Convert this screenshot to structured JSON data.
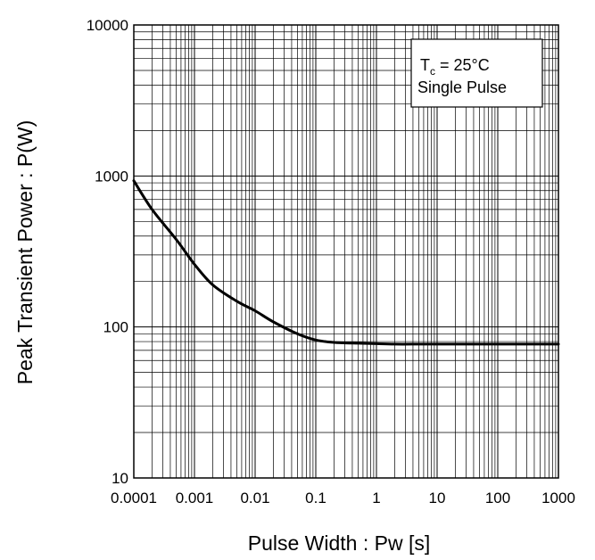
{
  "chart_data": {
    "type": "line",
    "title": "",
    "xlabel": "Pulse Width : Pw [s]",
    "ylabel": "Peak Transient Power : P(W)",
    "x_scale": "log",
    "y_scale": "log",
    "xlim": [
      0.0001,
      1000
    ],
    "ylim": [
      10,
      10000
    ],
    "grid": true,
    "x_ticks": [
      "0.0001",
      "0.001",
      "0.01",
      "0.1",
      "1",
      "10",
      "100",
      "1000"
    ],
    "y_ticks": [
      "10",
      "100",
      "1000",
      "10000"
    ],
    "annotation": {
      "condition_symbol": "T",
      "condition_subscript": "c",
      "condition_value": " = 25°C",
      "line2": "Single Pulse",
      "placement": "top-right"
    },
    "series": [
      {
        "color": "#000000",
        "x": [
          0.0001,
          0.0002,
          0.0005,
          0.001,
          0.002,
          0.005,
          0.01,
          0.02,
          0.05,
          0.1,
          0.2,
          0.5,
          1,
          2,
          5,
          10,
          100,
          1000
        ],
        "y": [
          930,
          600,
          380,
          260,
          190,
          148,
          128,
          108,
          90,
          82,
          79,
          78,
          77.5,
          77,
          77,
          77,
          77,
          77
        ]
      }
    ]
  }
}
